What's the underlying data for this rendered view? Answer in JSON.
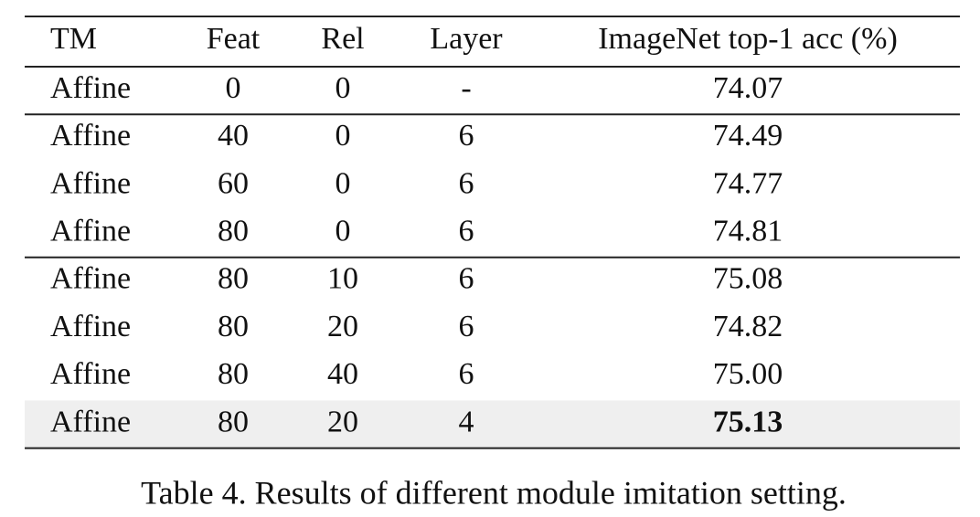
{
  "table": {
    "header": [
      "TM",
      "Feat",
      "Rel",
      "Layer",
      "ImageNet top-1 acc (%)"
    ],
    "groups": [
      [
        [
          "Affine",
          "0",
          "0",
          "-",
          "74.07"
        ]
      ],
      [
        [
          "Affine",
          "40",
          "0",
          "6",
          "74.49"
        ],
        [
          "Affine",
          "60",
          "0",
          "6",
          "74.77"
        ],
        [
          "Affine",
          "80",
          "0",
          "6",
          "74.81"
        ]
      ],
      [
        [
          "Affine",
          "80",
          "10",
          "6",
          "75.08"
        ],
        [
          "Affine",
          "80",
          "20",
          "6",
          "74.82"
        ],
        [
          "Affine",
          "80",
          "40",
          "6",
          "75.00"
        ],
        [
          "Affine",
          "80",
          "20",
          "4",
          "75.13"
        ]
      ]
    ]
  },
  "caption": "Table 4. Results of different module imitation setting."
}
